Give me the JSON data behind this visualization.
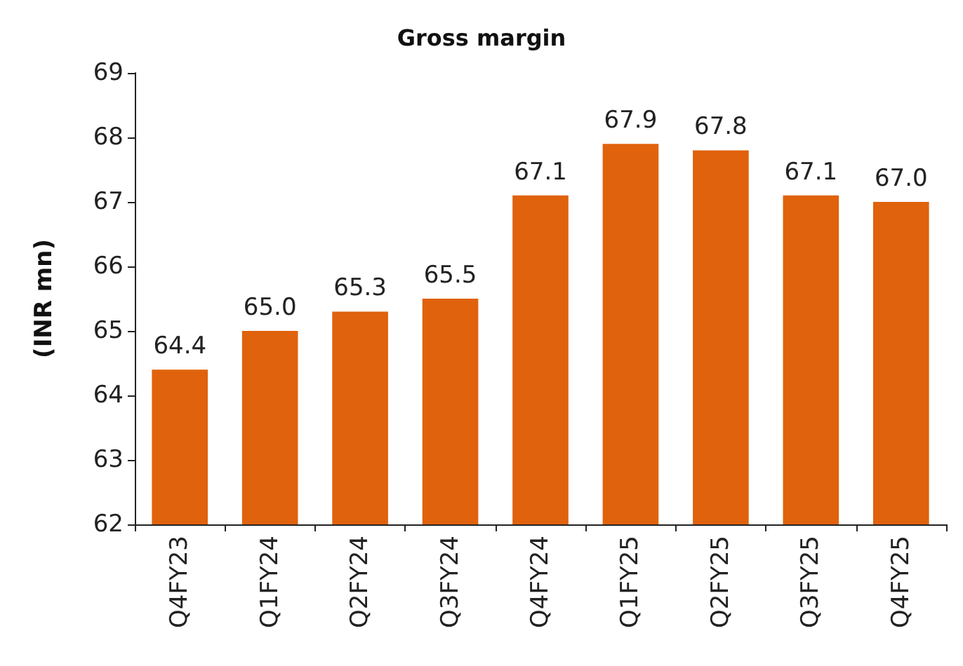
{
  "chart_data": {
    "type": "bar",
    "title": "Gross margin",
    "ylabel": "(INR mn)",
    "categories": [
      "Q4FY23",
      "Q1FY24",
      "Q2FY24",
      "Q3FY24",
      "Q4FY24",
      "Q1FY25",
      "Q2FY25",
      "Q3FY25",
      "Q4FY25"
    ],
    "values": [
      64.4,
      65.0,
      65.3,
      65.5,
      67.1,
      67.9,
      67.8,
      67.1,
      67.0
    ],
    "value_labels": [
      "64.4",
      "65.0",
      "65.3",
      "65.5",
      "67.1",
      "67.9",
      "67.8",
      "67.1",
      "67.0"
    ],
    "color": "#e0620d",
    "ylim": [
      62,
      69
    ],
    "yticks": [
      62,
      63,
      64,
      65,
      66,
      67,
      68,
      69
    ],
    "grid": false
  }
}
